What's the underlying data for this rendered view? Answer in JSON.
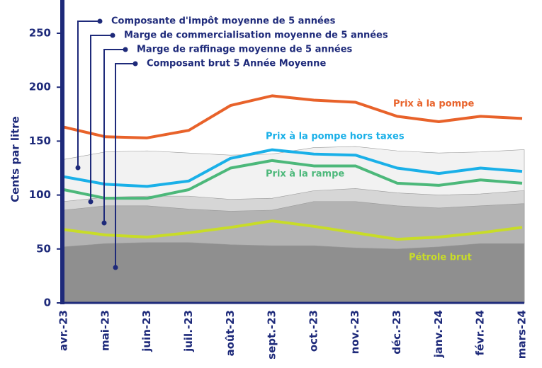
{
  "chart_data": {
    "type": "line",
    "ylabel": "Cents par litre",
    "categories": [
      "avr.-23",
      "mai-23",
      "juin-23",
      "juil.-23",
      "août-23",
      "sept.-23",
      "oct.-23",
      "nov.-23",
      "déc.-23",
      "janv.-24",
      "févr.-24",
      "mars-24"
    ],
    "ylim": [
      0,
      275
    ],
    "yticks": [
      0,
      50,
      100,
      150,
      200,
      250
    ],
    "areas": [
      {
        "name": "Composante d'impôt moyenne de 5 années",
        "color": "#f2f2f2",
        "values": [
          133,
          140,
          141,
          139,
          137,
          138,
          144,
          145,
          141,
          139,
          140,
          142
        ]
      },
      {
        "name": "Marge de commercialisation moyenne de 5 années",
        "color": "#d6d6d6",
        "values": [
          94,
          98,
          99,
          99,
          96,
          97,
          104,
          106,
          102,
          100,
          101,
          104
        ]
      },
      {
        "name": "Marge de raffinage moyenne de 5 années",
        "color": "#b3b3b3",
        "values": [
          86,
          90,
          90,
          87,
          85,
          86,
          94,
          94,
          90,
          88,
          90,
          92
        ]
      },
      {
        "name": "Composant brut 5 Année Moyenne",
        "color": "#8f8f8f",
        "values": [
          52,
          55,
          56,
          56,
          54,
          53,
          53,
          51,
          50,
          52,
          55,
          55
        ]
      }
    ],
    "series": [
      {
        "name": "Prix à la pompe",
        "color": "#e8622a",
        "values": [
          163,
          154,
          153,
          160,
          183,
          192,
          188,
          186,
          173,
          168,
          173,
          171
        ]
      },
      {
        "name": "Prix à la pompe hors taxes",
        "color": "#1ab0e8",
        "values": [
          117,
          110,
          108,
          113,
          134,
          142,
          138,
          137,
          125,
          120,
          125,
          122
        ]
      },
      {
        "name": "Prix à la rampe",
        "color": "#4cb87a",
        "values": [
          105,
          97,
          97,
          105,
          125,
          132,
          127,
          127,
          111,
          109,
          114,
          111
        ]
      },
      {
        "name": "Pétrole brut",
        "color": "#c8dc28",
        "values": [
          68,
          63,
          61,
          65,
          70,
          76,
          71,
          65,
          59,
          61,
          65,
          70
        ]
      }
    ]
  }
}
